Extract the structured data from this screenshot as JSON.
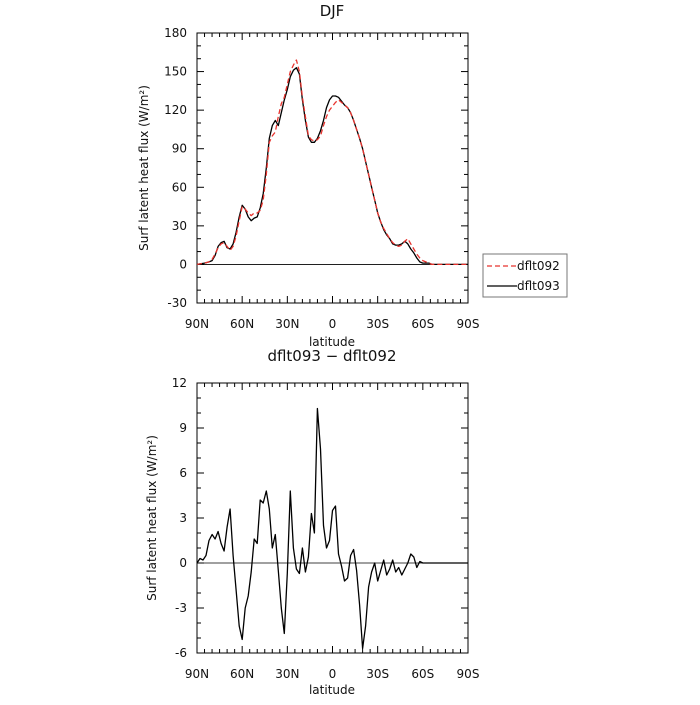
{
  "chart_data": [
    {
      "type": "line",
      "title": "DJF",
      "xlabel": "latitude",
      "ylabel": "Surf latent heat flux (W/m²)",
      "ylim": [
        -30,
        180
      ],
      "yticks": [
        "-30",
        "0",
        "30",
        "60",
        "90",
        "120",
        "150",
        "180"
      ],
      "xlim": [
        90,
        -90
      ],
      "xticks": [
        "90N",
        "60N",
        "30N",
        "0",
        "30S",
        "60S",
        "90S"
      ],
      "x": [
        90,
        85,
        82,
        80,
        78,
        76,
        74,
        72,
        70,
        68,
        66,
        64,
        62,
        60,
        58,
        56,
        54,
        52,
        50,
        48,
        46,
        44,
        42,
        40,
        38,
        36,
        34,
        32,
        30,
        28,
        26,
        24,
        22,
        20,
        18,
        16,
        14,
        12,
        10,
        8,
        6,
        4,
        2,
        0,
        -2,
        -4,
        -6,
        -8,
        -10,
        -12,
        -14,
        -16,
        -18,
        -20,
        -22,
        -24,
        -26,
        -28,
        -30,
        -32,
        -34,
        -36,
        -38,
        -40,
        -42,
        -44,
        -46,
        -48,
        -50,
        -52,
        -54,
        -56,
        -58,
        -60,
        -62,
        -64,
        -66,
        -68,
        -70,
        -72,
        -74,
        -76,
        -78,
        -80,
        -82,
        -84,
        -86,
        -88,
        -90
      ],
      "legend": {
        "position": "right",
        "entries": [
          "dflt092",
          "dflt093"
        ]
      },
      "series": [
        {
          "name": "dflt092",
          "color": "#e8332e",
          "style": "dashed",
          "values": [
            0,
            1,
            2,
            4,
            8,
            13,
            16,
            17,
            14,
            11,
            14,
            22,
            34,
            45,
            43,
            40,
            38,
            40,
            40,
            42,
            50,
            70,
            95,
            100,
            103,
            115,
            125,
            130,
            140,
            150,
            155,
            159,
            150,
            130,
            115,
            100,
            97,
            96,
            97,
            100,
            108,
            115,
            120,
            123,
            126,
            128,
            126,
            124,
            122,
            118,
            112,
            105,
            98,
            90,
            80,
            70,
            60,
            50,
            40,
            33,
            28,
            24,
            20,
            17,
            15,
            14,
            15,
            18,
            20,
            16,
            12,
            8,
            5,
            3,
            2,
            1,
            0,
            0,
            0,
            0,
            0,
            0,
            0,
            0,
            0,
            0,
            0,
            0,
            0
          ]
        },
        {
          "name": "dflt093",
          "color": "#000000",
          "style": "solid",
          "values": [
            0,
            1,
            2,
            3,
            7,
            14,
            17,
            18,
            13,
            12,
            16,
            25,
            37,
            46,
            43,
            37,
            34,
            36,
            37,
            44,
            55,
            75,
            98,
            108,
            112,
            108,
            118,
            128,
            136,
            146,
            151,
            153,
            148,
            128,
            112,
            99,
            95,
            95,
            98,
            104,
            112,
            122,
            128,
            131,
            131,
            130,
            127,
            124,
            122,
            118,
            112,
            105,
            98,
            90,
            80,
            70,
            60,
            50,
            40,
            33,
            27,
            23,
            20,
            16,
            15,
            15,
            16,
            18,
            16,
            12,
            9,
            5,
            2,
            1,
            1,
            1,
            0,
            0,
            0,
            0,
            0,
            0,
            0,
            0,
            0,
            0,
            0,
            0,
            0
          ]
        }
      ]
    },
    {
      "type": "line",
      "title": "dflt093 − dflt092",
      "xlabel": "latitude",
      "ylabel": "Surf latent heat flux (W/m²)",
      "ylim": [
        -6,
        12
      ],
      "yticks": [
        "-6",
        "-3",
        "0",
        "3",
        "6",
        "9",
        "12"
      ],
      "xlim": [
        90,
        -90
      ],
      "xticks": [
        "90N",
        "60N",
        "30N",
        "0",
        "30S",
        "60S",
        "90S"
      ],
      "series": [
        {
          "color": "#000000",
          "style": "solid",
          "x": [
            90,
            88,
            86,
            84,
            82,
            80,
            78,
            76,
            74,
            72,
            70,
            68,
            66,
            64,
            62,
            60,
            58,
            56,
            54,
            52,
            50,
            48,
            46,
            44,
            42,
            40,
            38,
            36,
            34,
            32,
            30,
            28,
            26,
            24,
            22,
            20,
            18,
            16,
            14,
            12,
            10,
            8,
            6,
            4,
            2,
            0,
            -2,
            -4,
            -6,
            -8,
            -10,
            -12,
            -14,
            -16,
            -18,
            -20,
            -22,
            -24,
            -26,
            -28,
            -30,
            -32,
            -34,
            -36,
            -38,
            -40,
            -42,
            -44,
            -46,
            -48,
            -50,
            -52,
            -54,
            -56,
            -58,
            -60,
            -62,
            -64,
            -66,
            -68,
            -70,
            -72,
            -74,
            -76,
            -78,
            -80,
            -82,
            -84,
            -86,
            -88,
            -90
          ],
          "values": [
            0,
            0.3,
            0.2,
            0.5,
            1.5,
            1.9,
            1.6,
            2.1,
            1.3,
            0.8,
            2.4,
            3.6,
            0.5,
            -1.8,
            -4.2,
            -5.1,
            -3.0,
            -2.2,
            -0.6,
            1.6,
            1.3,
            4.2,
            4.0,
            4.8,
            3.6,
            1.0,
            1.9,
            -0.5,
            -3.0,
            -4.7,
            -0.7,
            4.8,
            1.0,
            -0.4,
            -0.7,
            1.0,
            -0.6,
            0.4,
            3.3,
            2.0,
            10.3,
            7.6,
            2.5,
            1.0,
            1.5,
            3.5,
            3.8,
            0.6,
            -0.2,
            -1.2,
            -1.0,
            0.5,
            0.9,
            -0.5,
            -2.8,
            -5.7,
            -4.2,
            -1.6,
            -0.6,
            0.0,
            -1.2,
            -0.5,
            0.2,
            -0.8,
            -0.4,
            0.2,
            -0.6,
            -0.3,
            -0.8,
            -0.4,
            0.0,
            0.6,
            0.4,
            -0.3,
            0.1,
            0.0,
            0,
            0,
            0,
            0,
            0,
            0,
            0,
            0,
            0,
            0,
            0,
            0,
            0,
            0,
            0
          ]
        }
      ]
    }
  ]
}
